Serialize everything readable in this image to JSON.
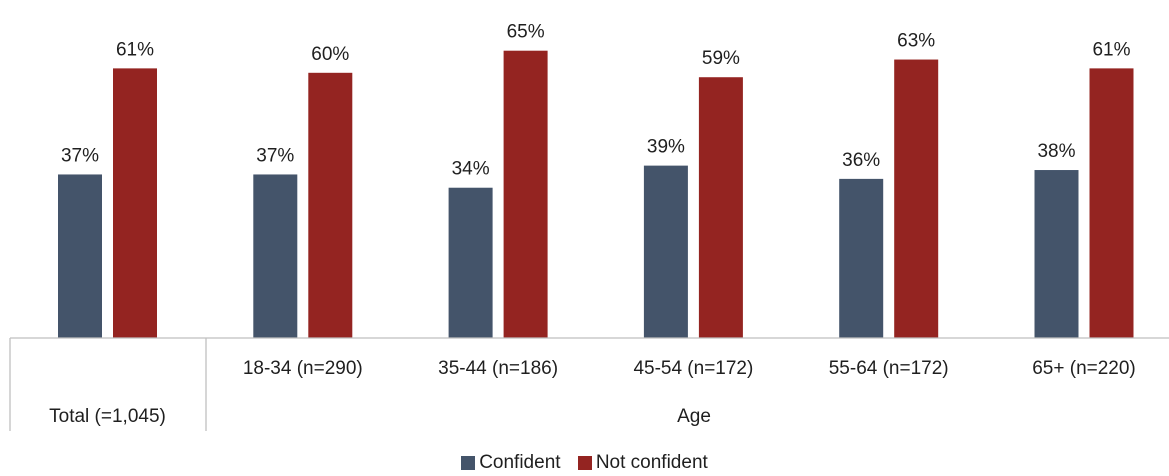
{
  "chart_data": {
    "type": "bar",
    "categories": [
      "Total (=1,045)",
      "18-34 (n=290)",
      "35-44 (n=186)",
      "45-54 (n=172)",
      "55-64 (n=172)",
      "65+ (n=220)"
    ],
    "group_label": "Age",
    "series": [
      {
        "name": "Confident",
        "color": "#44546a",
        "values": [
          37,
          37,
          34,
          39,
          36,
          38
        ],
        "labels": [
          "37%",
          "37%",
          "34%",
          "39%",
          "36%",
          "38%"
        ]
      },
      {
        "name": "Not confident",
        "color": "#942421",
        "values": [
          61,
          60,
          65,
          59,
          63,
          61
        ],
        "labels": [
          "61%",
          "60%",
          "65%",
          "59%",
          "63%",
          "61%"
        ]
      }
    ],
    "ylim": [
      0,
      100
    ],
    "grid": false,
    "legend_position": "bottom"
  }
}
